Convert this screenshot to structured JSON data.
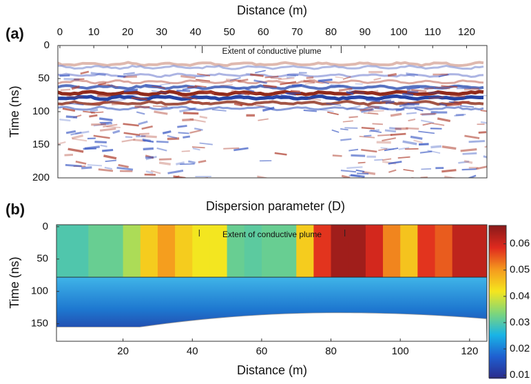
{
  "chart_data": [
    {
      "type": "radargram",
      "panel_label": "(a)",
      "x_label": "Distance (m)",
      "y_label": "Time (ns)",
      "annotation": "Extent of conductive plume",
      "annotation_range": [
        42,
        83
      ],
      "xlim": [
        -0.6,
        126
      ],
      "xticks": [
        0,
        10,
        20,
        30,
        40,
        50,
        60,
        70,
        80,
        90,
        100,
        110,
        120
      ],
      "ylim": [
        0,
        200
      ],
      "yticks": [
        0,
        50,
        100,
        150,
        200
      ]
    },
    {
      "type": "heatmap",
      "panel_label": "(b)",
      "title": "Dispersion parameter (D)",
      "x_label": "Distance (m)",
      "y_label": "Time (ns)",
      "annotation": "Extent of conductive plume",
      "annotation_range": [
        42,
        84
      ],
      "xlim": [
        0.8,
        125
      ],
      "xticks": [
        20,
        40,
        60,
        80,
        100,
        120
      ],
      "ylim": [
        -3,
        177
      ],
      "yticks": [
        0,
        50,
        100,
        150
      ],
      "layer_time": 78,
      "x": [
        0,
        5,
        10,
        15,
        20,
        25,
        30,
        35,
        40,
        45,
        50,
        55,
        60,
        65,
        70,
        75,
        80,
        85,
        90,
        95,
        100,
        105,
        110,
        115,
        120
      ],
      "values": [
        0.03,
        0.03,
        0.032,
        0.032,
        0.037,
        0.045,
        0.05,
        0.045,
        0.042,
        0.042,
        0.032,
        0.031,
        0.032,
        0.032,
        0.045,
        0.058,
        0.065,
        0.065,
        0.06,
        0.052,
        0.046,
        0.058,
        0.055,
        0.062,
        0.062
      ],
      "colormap": [
        "#2a2a8c",
        "#1f5fd0",
        "#19b4e6",
        "#7fd67a",
        "#f5e61e",
        "#f59a1e",
        "#e02a1e",
        "#8b1a1a"
      ],
      "clim": [
        0.009,
        0.067
      ],
      "cticks": [
        0.01,
        0.02,
        0.03,
        0.04,
        0.05,
        0.06
      ]
    }
  ]
}
